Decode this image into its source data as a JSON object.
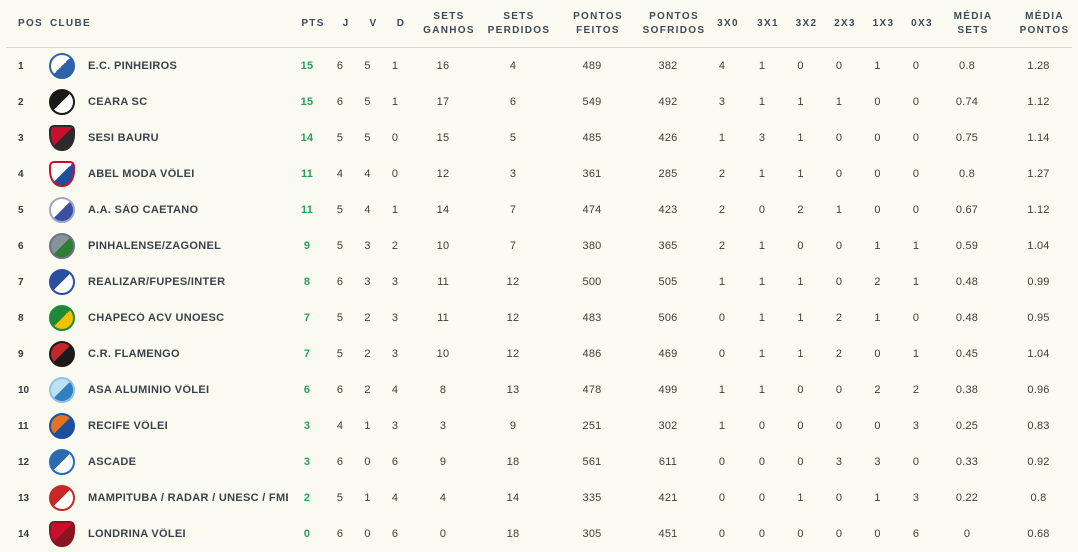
{
  "colors": {
    "background": "#fafaf0",
    "header_text": "#3e4a57",
    "row_text": "#3e3e3e",
    "club_name_text": "#39434d",
    "points_accent_green": "#27a05c",
    "header_divider": "#d9d9d0"
  },
  "table": {
    "header": {
      "pos": "POS",
      "clube": "CLUBE",
      "pts": "PTS",
      "j": "J",
      "v": "V",
      "d": "D",
      "sets_ganhos": "SETS GANHOS",
      "sets_perdidos": "SETS PERDIDOS",
      "pontos_feitos": "PONTOS FEITOS",
      "pontos_sofridos": "PONTOS SOFRIDOS",
      "r3x0": "3X0",
      "r3x1": "3X1",
      "r3x2": "3X2",
      "r2x3": "2X3",
      "r1x3": "1X3",
      "r0x3": "0X3",
      "media_sets": "MÉDIA SETS",
      "media_pontos": "MÉDIA PONTOS"
    },
    "value_keys": [
      "pts",
      "j",
      "v",
      "d",
      "sets_ganhos",
      "sets_perdidos",
      "pontos_feitos",
      "pontos_sofridos",
      "r3x0",
      "r3x1",
      "r3x2",
      "r2x3",
      "r1x3",
      "r0x3",
      "media_sets",
      "media_pontos"
    ],
    "rows": [
      {
        "pos": "1",
        "clube": "E.C. PINHEIROS",
        "logo": {
          "shape": "circle",
          "c1": "#ffffff",
          "c2": "#2e62a6",
          "ring": "#2e62a6"
        },
        "pts": "15",
        "j": "6",
        "v": "5",
        "d": "1",
        "sets_ganhos": "16",
        "sets_perdidos": "4",
        "pontos_feitos": "489",
        "pontos_sofridos": "382",
        "r3x0": "4",
        "r3x1": "1",
        "r3x2": "0",
        "r2x3": "0",
        "r1x3": "1",
        "r0x3": "0",
        "media_sets": "0.8",
        "media_pontos": "1.28"
      },
      {
        "pos": "2",
        "clube": "CEARA SC",
        "logo": {
          "shape": "circle",
          "c1": "#1a1a1a",
          "c2": "#ffffff",
          "ring": "#1a1a1a"
        },
        "pts": "15",
        "j": "6",
        "v": "5",
        "d": "1",
        "sets_ganhos": "17",
        "sets_perdidos": "6",
        "pontos_feitos": "549",
        "pontos_sofridos": "492",
        "r3x0": "3",
        "r3x1": "1",
        "r3x2": "1",
        "r2x3": "1",
        "r1x3": "0",
        "r0x3": "0",
        "media_sets": "0.74",
        "media_pontos": "1.12"
      },
      {
        "pos": "3",
        "clube": "SESI BAURU",
        "logo": {
          "shape": "shield",
          "c1": "#c8102e",
          "c2": "#2b2b2b",
          "ring": "#2b2b2b"
        },
        "pts": "14",
        "j": "5",
        "v": "5",
        "d": "0",
        "sets_ganhos": "15",
        "sets_perdidos": "5",
        "pontos_feitos": "485",
        "pontos_sofridos": "426",
        "r3x0": "1",
        "r3x1": "3",
        "r3x2": "1",
        "r2x3": "0",
        "r1x3": "0",
        "r0x3": "0",
        "media_sets": "0.75",
        "media_pontos": "1.14"
      },
      {
        "pos": "4",
        "clube": "ABEL MODA VÔLEI",
        "logo": {
          "shape": "shield",
          "c1": "#ffffff",
          "c2": "#1f4e9c",
          "ring": "#c8102e"
        },
        "pts": "11",
        "j": "4",
        "v": "4",
        "d": "0",
        "sets_ganhos": "12",
        "sets_perdidos": "3",
        "pontos_feitos": "361",
        "pontos_sofridos": "285",
        "r3x0": "2",
        "r3x1": "1",
        "r3x2": "1",
        "r2x3": "0",
        "r1x3": "0",
        "r0x3": "0",
        "media_sets": "0.8",
        "media_pontos": "1.27"
      },
      {
        "pos": "5",
        "clube": "A.A. SÃO CAETANO",
        "logo": {
          "shape": "circle",
          "c1": "#ffffff",
          "c2": "#3b4ea0",
          "ring": "#9aa7d0"
        },
        "pts": "11",
        "j": "5",
        "v": "4",
        "d": "1",
        "sets_ganhos": "14",
        "sets_perdidos": "7",
        "pontos_feitos": "474",
        "pontos_sofridos": "423",
        "r3x0": "2",
        "r3x1": "0",
        "r3x2": "2",
        "r2x3": "1",
        "r1x3": "0",
        "r0x3": "0",
        "media_sets": "0.67",
        "media_pontos": "1.12"
      },
      {
        "pos": "6",
        "clube": "PINHALENSE/ZAGONEL",
        "logo": {
          "shape": "circle",
          "c1": "#8a9299",
          "c2": "#2e7d32",
          "ring": "#6b7280"
        },
        "pts": "9",
        "j": "5",
        "v": "3",
        "d": "2",
        "sets_ganhos": "10",
        "sets_perdidos": "7",
        "pontos_feitos": "380",
        "pontos_sofridos": "365",
        "r3x0": "2",
        "r3x1": "1",
        "r3x2": "0",
        "r2x3": "0",
        "r1x3": "1",
        "r0x3": "1",
        "media_sets": "0.59",
        "media_pontos": "1.04"
      },
      {
        "pos": "7",
        "clube": "REALIZAR/FUPES/INTER",
        "logo": {
          "shape": "circle",
          "c1": "#2b4ea0",
          "c2": "#ffffff",
          "ring": "#2b4ea0"
        },
        "pts": "8",
        "j": "6",
        "v": "3",
        "d": "3",
        "sets_ganhos": "11",
        "sets_perdidos": "12",
        "pontos_feitos": "500",
        "pontos_sofridos": "505",
        "r3x0": "1",
        "r3x1": "1",
        "r3x2": "1",
        "r2x3": "0",
        "r1x3": "2",
        "r0x3": "1",
        "media_sets": "0.48",
        "media_pontos": "0.99"
      },
      {
        "pos": "8",
        "clube": "CHAPECÓ ACV UNOESC",
        "logo": {
          "shape": "circle",
          "c1": "#1d8a3a",
          "c2": "#f2c200",
          "ring": "#1d8a3a"
        },
        "pts": "7",
        "j": "5",
        "v": "2",
        "d": "3",
        "sets_ganhos": "11",
        "sets_perdidos": "12",
        "pontos_feitos": "483",
        "pontos_sofridos": "506",
        "r3x0": "0",
        "r3x1": "1",
        "r3x2": "1",
        "r2x3": "2",
        "r1x3": "1",
        "r0x3": "0",
        "media_sets": "0.48",
        "media_pontos": "0.95"
      },
      {
        "pos": "9",
        "clube": "C.R. FLAMENGO",
        "logo": {
          "shape": "circle",
          "c1": "#c3272b",
          "c2": "#1a1a1a",
          "ring": "#1a1a1a"
        },
        "pts": "7",
        "j": "5",
        "v": "2",
        "d": "3",
        "sets_ganhos": "10",
        "sets_perdidos": "12",
        "pontos_feitos": "486",
        "pontos_sofridos": "469",
        "r3x0": "0",
        "r3x1": "1",
        "r3x2": "1",
        "r2x3": "2",
        "r1x3": "0",
        "r0x3": "1",
        "media_sets": "0.45",
        "media_pontos": "1.04"
      },
      {
        "pos": "10",
        "clube": "ASA ALUMINIO VÔLEI",
        "logo": {
          "shape": "circle",
          "c1": "#bfe0f2",
          "c2": "#2f7fc1",
          "ring": "#8fc3e8"
        },
        "pts": "6",
        "j": "6",
        "v": "2",
        "d": "4",
        "sets_ganhos": "8",
        "sets_perdidos": "13",
        "pontos_feitos": "478",
        "pontos_sofridos": "499",
        "r3x0": "1",
        "r3x1": "1",
        "r3x2": "0",
        "r2x3": "0",
        "r1x3": "2",
        "r0x3": "2",
        "media_sets": "0.38",
        "media_pontos": "0.96"
      },
      {
        "pos": "11",
        "clube": "RECIFE VÔLEI",
        "logo": {
          "shape": "circle",
          "c1": "#e2731f",
          "c2": "#1c4f9c",
          "ring": "#1c4f9c"
        },
        "pts": "3",
        "j": "4",
        "v": "1",
        "d": "3",
        "sets_ganhos": "3",
        "sets_perdidos": "9",
        "pontos_feitos": "251",
        "pontos_sofridos": "302",
        "r3x0": "1",
        "r3x1": "0",
        "r3x2": "0",
        "r2x3": "0",
        "r1x3": "0",
        "r0x3": "3",
        "media_sets": "0.25",
        "media_pontos": "0.83"
      },
      {
        "pos": "12",
        "clube": "ASCADE",
        "logo": {
          "shape": "circle",
          "c1": "#2b6cb0",
          "c2": "#ffffff",
          "ring": "#2b6cb0"
        },
        "pts": "3",
        "j": "6",
        "v": "0",
        "d": "6",
        "sets_ganhos": "9",
        "sets_perdidos": "18",
        "pontos_feitos": "561",
        "pontos_sofridos": "611",
        "r3x0": "0",
        "r3x1": "0",
        "r3x2": "0",
        "r2x3": "3",
        "r1x3": "3",
        "r0x3": "0",
        "media_sets": "0.33",
        "media_pontos": "0.92"
      },
      {
        "pos": "13",
        "clube": "MAMPITUBA / RADAR / UNESC / FME CRICIUMA",
        "logo": {
          "shape": "circle",
          "c1": "#c62828",
          "c2": "#ffffff",
          "ring": "#c62828"
        },
        "pts": "2",
        "j": "5",
        "v": "1",
        "d": "4",
        "sets_ganhos": "4",
        "sets_perdidos": "14",
        "pontos_feitos": "335",
        "pontos_sofridos": "421",
        "r3x0": "0",
        "r3x1": "0",
        "r3x2": "1",
        "r2x3": "0",
        "r1x3": "1",
        "r0x3": "3",
        "media_sets": "0.22",
        "media_pontos": "0.8"
      },
      {
        "pos": "14",
        "clube": "LONDRINA VÔLEI",
        "logo": {
          "shape": "shield",
          "c1": "#c8102e",
          "c2": "#8a1520",
          "ring": "#8a1520"
        },
        "pts": "0",
        "j": "6",
        "v": "0",
        "d": "6",
        "sets_ganhos": "0",
        "sets_perdidos": "18",
        "pontos_feitos": "305",
        "pontos_sofridos": "451",
        "r3x0": "0",
        "r3x1": "0",
        "r3x2": "0",
        "r2x3": "0",
        "r1x3": "0",
        "r0x3": "6",
        "media_sets": "0",
        "media_pontos": "0.68"
      }
    ]
  }
}
